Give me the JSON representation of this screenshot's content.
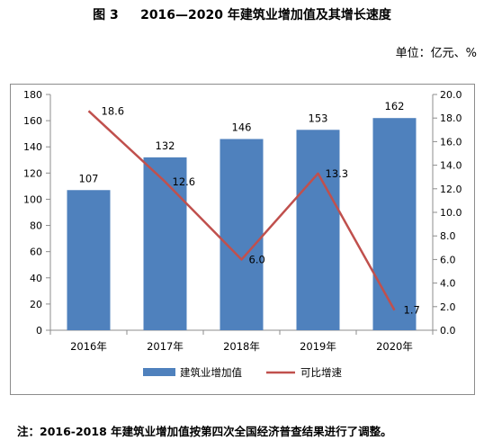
{
  "title": "图 3     2016—2020 年建筑业增加值及其增长速度",
  "unit_label": "单位：亿元、%",
  "note": "注：2016-2018 年建筑业增加值按第四次全国经济普查结果进行了调整。",
  "chart_data": {
    "type": "bar",
    "categories": [
      "2016年",
      "2017年",
      "2018年",
      "2019年",
      "2020年"
    ],
    "series": [
      {
        "name": "建筑业增加值",
        "type": "bar",
        "axis": "left",
        "values": [
          107,
          132,
          146,
          153,
          162
        ],
        "color": "#4f81bd"
      },
      {
        "name": "可比增速",
        "type": "line",
        "axis": "right",
        "values": [
          18.6,
          12.6,
          6.0,
          13.3,
          1.7
        ],
        "color": "#c0504d"
      }
    ],
    "bar_labels": [
      "107",
      "132",
      "146",
      "153",
      "162"
    ],
    "line_labels": [
      "18.6",
      "12.6",
      "6.0",
      "13.3",
      "1.7"
    ],
    "y_left": {
      "lim": [
        0,
        180
      ],
      "ticks": [
        "0",
        "20",
        "40",
        "60",
        "80",
        "100",
        "120",
        "140",
        "160",
        "180"
      ]
    },
    "y_right": {
      "lim": [
        0,
        20
      ],
      "ticks": [
        "0.0",
        "2.0",
        "4.0",
        "6.0",
        "8.0",
        "10.0",
        "12.0",
        "14.0",
        "16.0",
        "18.0",
        "20.0"
      ]
    },
    "grid": false,
    "legend_position": "bottom"
  }
}
